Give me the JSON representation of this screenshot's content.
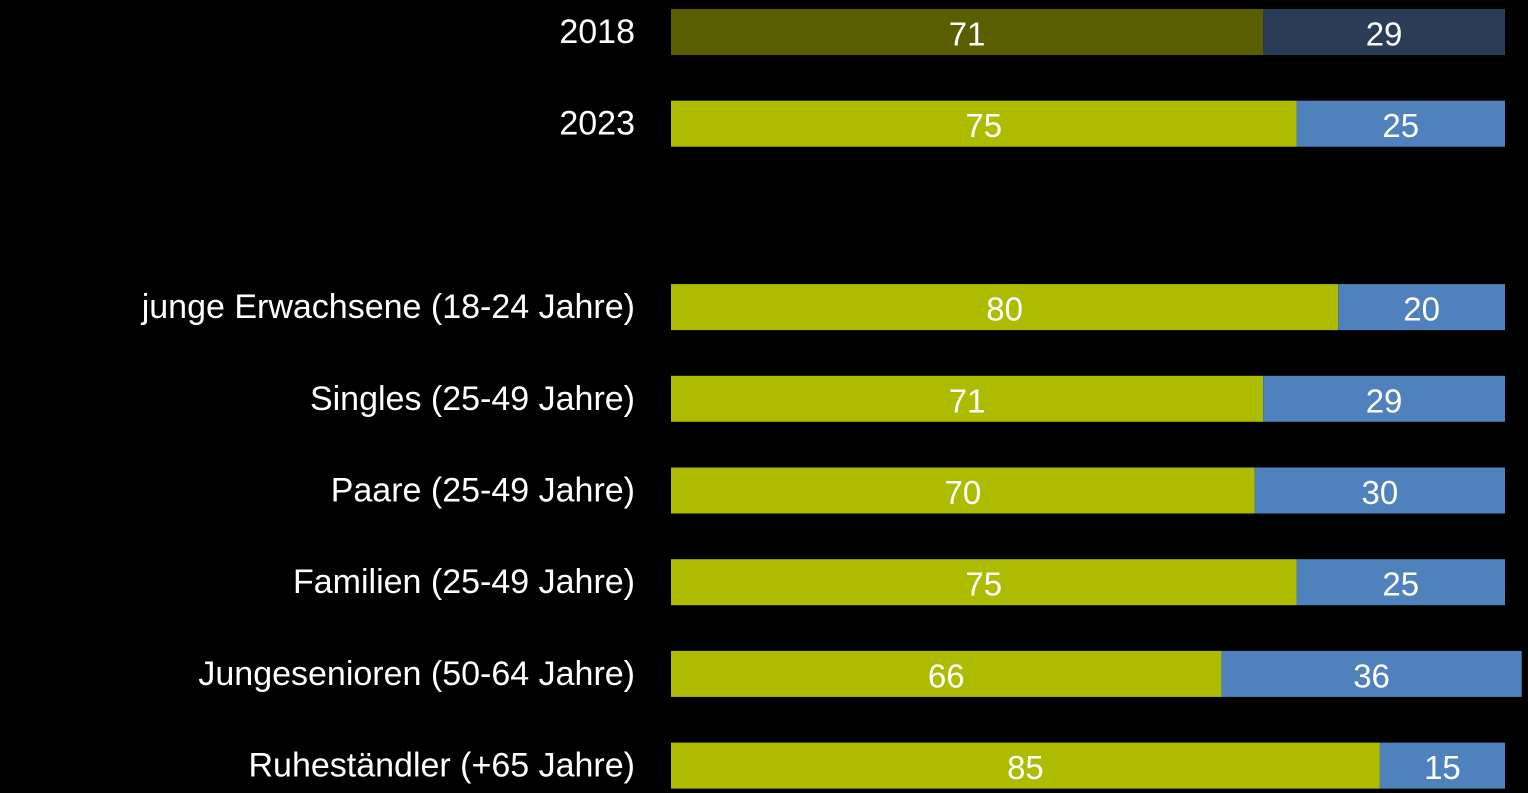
{
  "chart_data": {
    "type": "stacked-bar-horizontal",
    "categories": [
      "2018",
      "2023",
      null,
      "junge Erwachsene (18-24 Jahre)",
      "Singles (25-49 Jahre)",
      "Paare (25-49 Jahre)",
      "Familien (25-49 Jahre)",
      "Jungesenioren (50-64 Jahre)",
      "Ruheständler (+65 Jahre)"
    ],
    "xlim": [
      0,
      100
    ],
    "series": [
      {
        "color": "#adbc00",
        "colors": [
          "#5b5e00",
          "#adbc00",
          "#adbc00",
          "#adbc00",
          "#adbc00",
          "#adbc00",
          "#adbc00",
          "#adbc00",
          "#adbc00"
        ],
        "values": [
          71,
          75,
          null,
          80,
          71,
          70,
          75,
          66,
          85
        ]
      },
      {
        "color": "#4f81bd",
        "colors": [
          "#2a3c56",
          "#4f81bd",
          "#4f81bd",
          "#4f81bd",
          "#4f81bd",
          "#4f81bd",
          "#4f81bd",
          "#4f81bd",
          "#4f81bd"
        ],
        "values": [
          29,
          25,
          null,
          20,
          29,
          30,
          25,
          36,
          15
        ]
      }
    ]
  }
}
